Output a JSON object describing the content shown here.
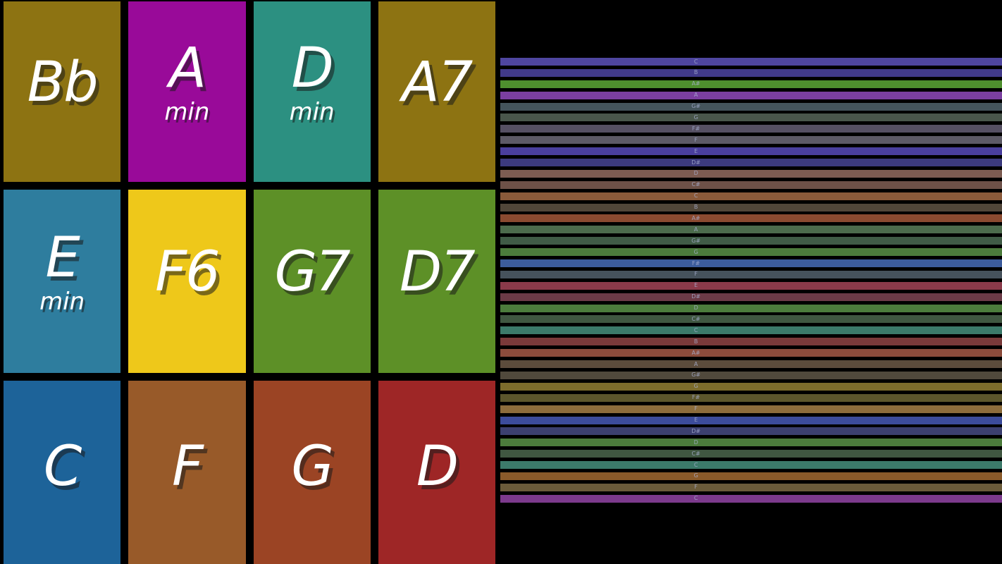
{
  "app": {
    "background": "#000000"
  },
  "chord_grid": {
    "pads": [
      {
        "label": "Bb",
        "suffix": "",
        "color": "#8d7312"
      },
      {
        "label": "A",
        "suffix": "min",
        "color": "#990a99"
      },
      {
        "label": "D",
        "suffix": "min",
        "color": "#2c9081"
      },
      {
        "label": "A7",
        "suffix": "",
        "color": "#8d7312"
      },
      {
        "label": "E",
        "suffix": "min",
        "color": "#2e7d9e"
      },
      {
        "label": "F6",
        "suffix": "",
        "color": "#eec81a"
      },
      {
        "label": "G7",
        "suffix": "",
        "color": "#5d9027"
      },
      {
        "label": "D7",
        "suffix": "",
        "color": "#5d9027"
      },
      {
        "label": "C",
        "suffix": "",
        "color": "#1d6399"
      },
      {
        "label": "F",
        "suffix": "",
        "color": "#985a29"
      },
      {
        "label": "G",
        "suffix": "",
        "color": "#9b4424"
      },
      {
        "label": "D",
        "suffix": "",
        "color": "#9e2626"
      }
    ]
  },
  "strings": {
    "label_color": "#aab2d4",
    "items": [
      {
        "note": "C",
        "color": "#4f46a0"
      },
      {
        "note": "B",
        "color": "#413a8a"
      },
      {
        "note": "A#",
        "color": "#4e8f2e"
      },
      {
        "note": "A",
        "color": "#7b3fa0"
      },
      {
        "note": "G#",
        "color": "#44545c"
      },
      {
        "note": "G",
        "color": "#49564b"
      },
      {
        "note": "F#",
        "color": "#565063"
      },
      {
        "note": "F",
        "color": "#5d5a66"
      },
      {
        "note": "E",
        "color": "#4a3f9e"
      },
      {
        "note": "D#",
        "color": "#3c3a7e"
      },
      {
        "note": "D",
        "color": "#7d5c52"
      },
      {
        "note": "C#",
        "color": "#6d5148"
      },
      {
        "note": "C",
        "color": "#8a5a3a"
      },
      {
        "note": "B",
        "color": "#514639"
      },
      {
        "note": "A#",
        "color": "#8a4a30"
      },
      {
        "note": "A",
        "color": "#4c6b4c"
      },
      {
        "note": "G#",
        "color": "#405c46"
      },
      {
        "note": "G",
        "color": "#4c7c3c"
      },
      {
        "note": "F#",
        "color": "#3c5c9c"
      },
      {
        "note": "F",
        "color": "#46525c"
      },
      {
        "note": "E",
        "color": "#8a3a4a"
      },
      {
        "note": "D#",
        "color": "#6b3a46"
      },
      {
        "note": "D",
        "color": "#4c7c3c"
      },
      {
        "note": "C#",
        "color": "#405741"
      },
      {
        "note": "C",
        "color": "#3c7a6a"
      },
      {
        "note": "B",
        "color": "#7a3a3a"
      },
      {
        "note": "A#",
        "color": "#8c4c3c"
      },
      {
        "note": "A",
        "color": "#5c4c3c"
      },
      {
        "note": "G#",
        "color": "#50493c"
      },
      {
        "note": "G",
        "color": "#7c6c2c"
      },
      {
        "note": "F#",
        "color": "#5c562c"
      },
      {
        "note": "F",
        "color": "#8c6c3c"
      },
      {
        "note": "E",
        "color": "#3c4c9c"
      },
      {
        "note": "D#",
        "color": "#3c4070"
      },
      {
        "note": "D",
        "color": "#4c7c3c"
      },
      {
        "note": "C#",
        "color": "#405741"
      },
      {
        "note": "C",
        "color": "#3c7a6a"
      },
      {
        "note": "G",
        "color": "#8a5a2a"
      },
      {
        "note": "F",
        "color": "#6b5b3a"
      },
      {
        "note": "C",
        "color": "#7c3a8c"
      }
    ]
  }
}
